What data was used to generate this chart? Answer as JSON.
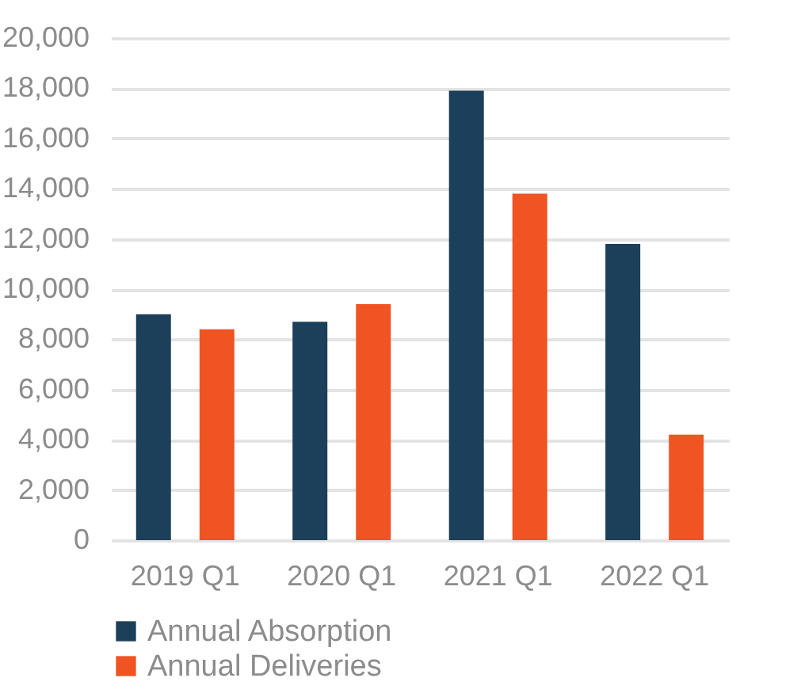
{
  "chart_data": {
    "type": "bar",
    "categories": [
      "2019 Q1",
      "2020 Q1",
      "2021 Q1",
      "2022 Q1"
    ],
    "series": [
      {
        "name": "Annual Absorption",
        "color": "#1c4059",
        "values": [
          9000,
          8700,
          17900,
          11800
        ]
      },
      {
        "name": "Annual Deliveries",
        "color": "#f05423",
        "values": [
          8400,
          9400,
          13800,
          4200
        ]
      }
    ],
    "ylim": [
      0,
      20000
    ],
    "yticks": [
      0,
      {
        "value": 2000,
        "label": "2,000"
      },
      {
        "value": 4000,
        "label": "4,000"
      },
      {
        "value": 6000,
        "label": "6,000"
      },
      {
        "value": 8000,
        "label": "8,000"
      },
      {
        "value": 10000,
        "label": "10,000"
      },
      {
        "value": 12000,
        "label": "12,000"
      },
      {
        "value": 14000,
        "label": "14,000"
      },
      {
        "value": 16000,
        "label": "16,000"
      },
      {
        "value": 18000,
        "label": "18,000"
      },
      {
        "value": 20000,
        "label": "20,000"
      }
    ],
    "grid": "y",
    "legend": "bottom"
  }
}
